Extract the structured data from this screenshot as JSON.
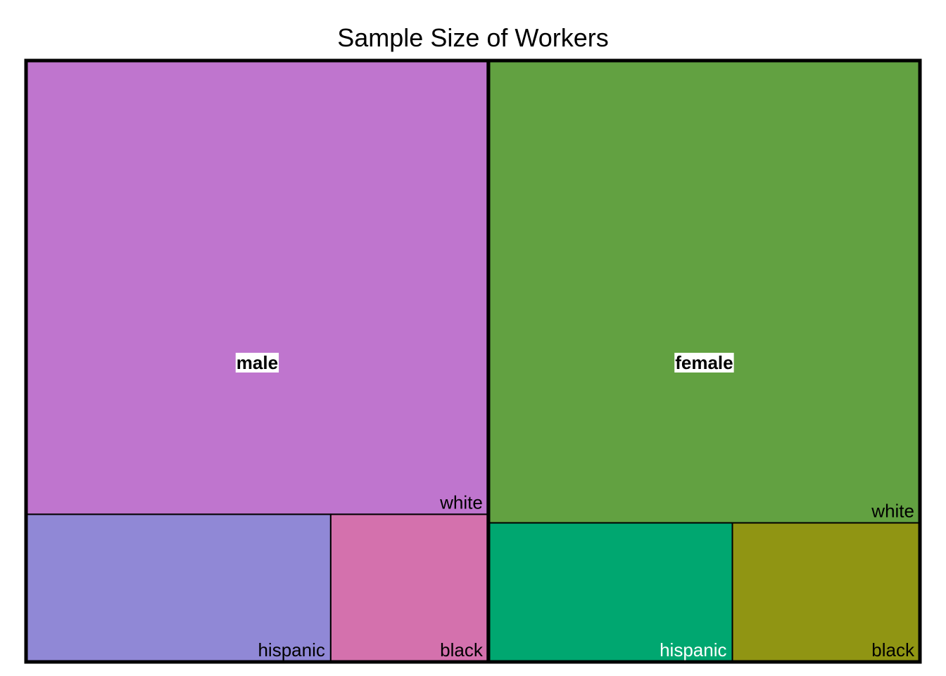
{
  "chart_data": {
    "type": "treemap",
    "title": "Sample Size of Workers",
    "groups": [
      {
        "name": "male",
        "color": "#BF75CE",
        "children": [
          {
            "name": "white",
            "value": 0.3877,
            "color": "#BF75CE",
            "label_color": "#000000"
          },
          {
            "name": "hispanic",
            "value": 0.0831,
            "color": "#9088D6",
            "label_color": "#000000"
          },
          {
            "name": "black",
            "value": 0.043,
            "color": "#D471AD",
            "label_color": "#000000"
          }
        ]
      },
      {
        "name": "female",
        "color": "#62A141",
        "children": [
          {
            "name": "white",
            "value": 0.3687,
            "color": "#62A141",
            "label_color": "#000000"
          },
          {
            "name": "hispanic",
            "value": 0.0627,
            "color": "#00A770",
            "label_color": "#FFFFFF"
          },
          {
            "name": "black",
            "value": 0.0482,
            "color": "#909513",
            "label_color": "#000000"
          }
        ]
      }
    ]
  }
}
